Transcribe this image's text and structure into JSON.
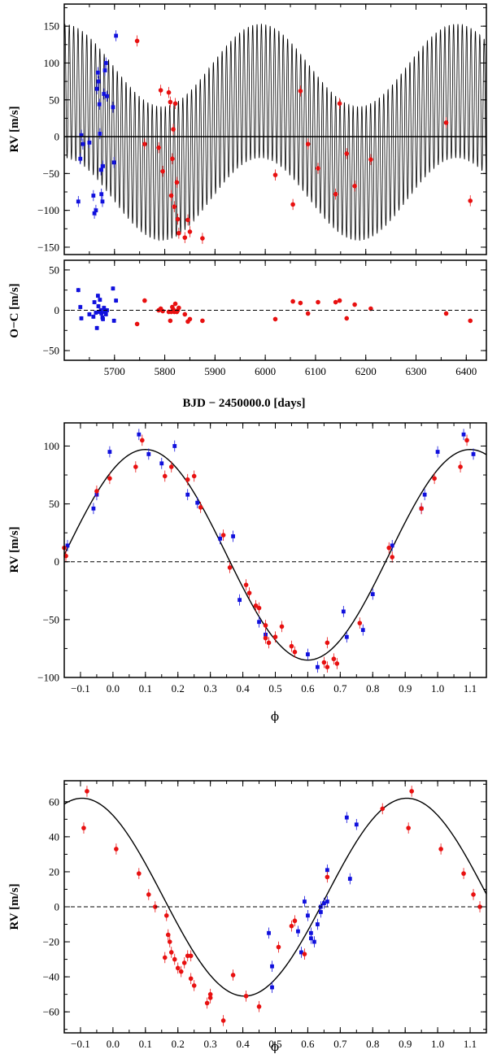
{
  "chart_data": [
    {
      "type": "scatter",
      "ylabel": "RV [m/s]",
      "xlim": [
        5600,
        6440
      ],
      "ylim": [
        -160,
        180
      ],
      "xticks": [
        5700,
        5800,
        5900,
        6000,
        6100,
        6200,
        6300,
        6400
      ],
      "yticks": [
        -150,
        -100,
        -50,
        0,
        50,
        100,
        150
      ],
      "grid": false,
      "series": [
        {
          "color": "#1010dd",
          "marker": "square",
          "points": [
            [
              5628,
              -88
            ],
            [
              5632,
              -30
            ],
            [
              5634,
              2
            ],
            [
              5637,
              -10
            ],
            [
              5650,
              -8
            ],
            [
              5658,
              -80
            ],
            [
              5660,
              -104
            ],
            [
              5663,
              -100
            ],
            [
              5665,
              65
            ],
            [
              5667,
              87
            ],
            [
              5668,
              75
            ],
            [
              5670,
              44
            ],
            [
              5671,
              4
            ],
            [
              5673,
              -45
            ],
            [
              5674,
              -78
            ],
            [
              5676,
              -88
            ],
            [
              5677,
              -40
            ],
            [
              5679,
              58
            ],
            [
              5681,
              90
            ],
            [
              5683,
              100
            ],
            [
              5685,
              55
            ],
            [
              5697,
              40
            ],
            [
              5699,
              -35
            ],
            [
              5703,
              137
            ]
          ]
        },
        {
          "color": "#e81010",
          "marker": "circle",
          "points": [
            [
              5745,
              130
            ],
            [
              5760,
              -10
            ],
            [
              5788,
              -15
            ],
            [
              5792,
              63
            ],
            [
              5796,
              -47
            ],
            [
              5808,
              60
            ],
            [
              5811,
              47
            ],
            [
              5813,
              -80
            ],
            [
              5815,
              -30
            ],
            [
              5817,
              10
            ],
            [
              5819,
              -95
            ],
            [
              5821,
              45
            ],
            [
              5824,
              -62
            ],
            [
              5826,
              -112
            ],
            [
              5828,
              -131
            ],
            [
              5840,
              -137
            ],
            [
              5846,
              -113
            ],
            [
              5850,
              -129
            ],
            [
              5875,
              -138
            ],
            [
              6020,
              -52
            ],
            [
              6055,
              -92
            ],
            [
              6070,
              62
            ],
            [
              6085,
              -10
            ],
            [
              6105,
              -43
            ],
            [
              6140,
              -78
            ],
            [
              6148,
              45
            ],
            [
              6162,
              -23
            ],
            [
              6178,
              -67
            ],
            [
              6210,
              -31
            ],
            [
              6360,
              19
            ],
            [
              6408,
              -87
            ]
          ]
        }
      ]
    },
    {
      "type": "scatter",
      "ylabel": "O−C [m/s]",
      "xlabel": "BJD − 2450000.0 [days]",
      "xlim": [
        5600,
        6440
      ],
      "ylim": [
        -62,
        62
      ],
      "xticks": [
        5700,
        5800,
        5900,
        6000,
        6100,
        6200,
        6300,
        6400
      ],
      "yticks": [
        -50,
        0,
        50
      ],
      "grid": false,
      "series": [
        {
          "color": "#1010dd",
          "marker": "square",
          "points": [
            [
              5628,
              25
            ],
            [
              5632,
              4
            ],
            [
              5634,
              -10
            ],
            [
              5650,
              -5
            ],
            [
              5658,
              -8
            ],
            [
              5660,
              10
            ],
            [
              5663,
              -3
            ],
            [
              5665,
              -22
            ],
            [
              5667,
              18
            ],
            [
              5668,
              5
            ],
            [
              5670,
              -2
            ],
            [
              5671,
              13
            ],
            [
              5673,
              0
            ],
            [
              5674,
              -4
            ],
            [
              5676,
              -9
            ],
            [
              5677,
              -11
            ],
            [
              5679,
              3
            ],
            [
              5681,
              -2
            ],
            [
              5683,
              -5
            ],
            [
              5685,
              0
            ],
            [
              5697,
              27
            ],
            [
              5699,
              -13
            ],
            [
              5703,
              12
            ]
          ]
        },
        {
          "color": "#e81010",
          "marker": "circle",
          "points": [
            [
              5745,
              -17
            ],
            [
              5760,
              12
            ],
            [
              5788,
              0
            ],
            [
              5792,
              2
            ],
            [
              5796,
              -1
            ],
            [
              5808,
              -2
            ],
            [
              5811,
              -13
            ],
            [
              5813,
              -2
            ],
            [
              5815,
              4
            ],
            [
              5817,
              1
            ],
            [
              5819,
              -2
            ],
            [
              5821,
              8
            ],
            [
              5824,
              -2
            ],
            [
              5826,
              0
            ],
            [
              5828,
              3
            ],
            [
              5840,
              -5
            ],
            [
              5846,
              -14
            ],
            [
              5850,
              -11
            ],
            [
              5875,
              -13
            ],
            [
              6020,
              -11
            ],
            [
              6055,
              11
            ],
            [
              6070,
              9
            ],
            [
              6085,
              -4
            ],
            [
              6105,
              10
            ],
            [
              6140,
              10
            ],
            [
              6148,
              12
            ],
            [
              6162,
              -10
            ],
            [
              6178,
              7
            ],
            [
              6210,
              2
            ],
            [
              6360,
              -4
            ],
            [
              6408,
              -13
            ]
          ]
        }
      ]
    },
    {
      "type": "scatter",
      "ylabel": "RV [m/s]",
      "xlabel": "ϕ",
      "xlim": [
        -0.15,
        1.15
      ],
      "ylim": [
        -100,
        120
      ],
      "xticks": [
        -0.1,
        0.0,
        0.1,
        0.2,
        0.3,
        0.4,
        0.5,
        0.6,
        0.7,
        0.8,
        0.9,
        1.0,
        1.1
      ],
      "yticks": [
        -100,
        -50,
        0,
        50,
        100
      ],
      "xtick_labels": [
        "−0.1",
        "0.0",
        "0.1",
        "0.2",
        "0.3",
        "0.4",
        "0.5",
        "0.6",
        "0.7",
        "0.8",
        "0.9",
        "1.0",
        "1.1"
      ],
      "yrange_model": {
        "amplitude": 91,
        "offset": 6,
        "peak_phase": 0.1
      },
      "series": [
        {
          "color": "#1010dd",
          "marker": "square",
          "points": [
            [
              -0.14,
              14
            ],
            [
              -0.06,
              46
            ],
            [
              -0.05,
              58
            ],
            [
              -0.01,
              95
            ],
            [
              0.08,
              110
            ],
            [
              0.11,
              93
            ],
            [
              0.15,
              85
            ],
            [
              0.19,
              100
            ],
            [
              0.23,
              58
            ],
            [
              0.26,
              51
            ],
            [
              0.33,
              20
            ],
            [
              0.37,
              22
            ],
            [
              0.39,
              -33
            ],
            [
              0.45,
              -52
            ],
            [
              0.47,
              -63
            ],
            [
              0.6,
              -80
            ],
            [
              0.63,
              -91
            ],
            [
              0.71,
              -43
            ],
            [
              0.72,
              -65
            ],
            [
              0.77,
              -59
            ],
            [
              0.8,
              -28
            ],
            [
              0.86,
              14
            ],
            [
              0.95,
              46
            ],
            [
              0.96,
              58
            ],
            [
              1.0,
              95
            ],
            [
              1.08,
              110
            ],
            [
              1.11,
              93
            ]
          ]
        },
        {
          "color": "#e81010",
          "marker": "circle",
          "points": [
            [
              -0.15,
              12
            ],
            [
              -0.145,
              5
            ],
            [
              -0.05,
              61
            ],
            [
              -0.01,
              72
            ],
            [
              0.07,
              82
            ],
            [
              0.09,
              105
            ],
            [
              0.16,
              74
            ],
            [
              0.18,
              82
            ],
            [
              0.23,
              71
            ],
            [
              0.25,
              74
            ],
            [
              0.27,
              47
            ],
            [
              0.34,
              23
            ],
            [
              0.36,
              -5
            ],
            [
              0.41,
              -20
            ],
            [
              0.42,
              -27
            ],
            [
              0.44,
              -38
            ],
            [
              0.45,
              -40
            ],
            [
              0.47,
              -55
            ],
            [
              0.47,
              -66
            ],
            [
              0.48,
              -70
            ],
            [
              0.5,
              -65
            ],
            [
              0.52,
              -56
            ],
            [
              0.55,
              -73
            ],
            [
              0.56,
              -78
            ],
            [
              0.65,
              -87
            ],
            [
              0.66,
              -91
            ],
            [
              0.66,
              -70
            ],
            [
              0.68,
              -84
            ],
            [
              0.69,
              -88
            ],
            [
              0.76,
              -53
            ],
            [
              0.85,
              12
            ],
            [
              0.86,
              4
            ],
            [
              0.95,
              46
            ],
            [
              0.99,
              72
            ],
            [
              1.07,
              82
            ],
            [
              1.09,
              105
            ]
          ]
        }
      ]
    },
    {
      "type": "scatter",
      "ylabel": "RV [m/s]",
      "xlabel": "ϕ",
      "xlim": [
        -0.15,
        1.15
      ],
      "ylim": [
        -72,
        72
      ],
      "xticks": [
        -0.1,
        0.0,
        0.1,
        0.2,
        0.3,
        0.4,
        0.5,
        0.6,
        0.7,
        0.8,
        0.9,
        1.0,
        1.1
      ],
      "yticks": [
        -60,
        -40,
        -20,
        0,
        20,
        40,
        60
      ],
      "xtick_labels": [
        "−0.1",
        "0.0",
        "0.1",
        "0.2",
        "0.3",
        "0.4",
        "0.5",
        "0.6",
        "0.7",
        "0.8",
        "0.9",
        "1.0",
        "1.1"
      ],
      "yrange_model": {
        "amplitude": 56.5,
        "offset": 5.5,
        "peak_phase": 0.905
      },
      "series": [
        {
          "color": "#1010dd",
          "marker": "square",
          "points": [
            [
              0.48,
              -15
            ],
            [
              0.49,
              -34
            ],
            [
              0.49,
              -46
            ],
            [
              0.57,
              -14
            ],
            [
              0.58,
              -26
            ],
            [
              0.59,
              3
            ],
            [
              0.6,
              -5
            ],
            [
              0.61,
              -15
            ],
            [
              0.61,
              -18
            ],
            [
              0.62,
              -20
            ],
            [
              0.63,
              -10
            ],
            [
              0.64,
              -3
            ],
            [
              0.64,
              0
            ],
            [
              0.65,
              2
            ],
            [
              0.66,
              21
            ],
            [
              0.66,
              3
            ],
            [
              0.72,
              51
            ],
            [
              0.73,
              16
            ],
            [
              0.75,
              47
            ]
          ]
        },
        {
          "color": "#e81010",
          "marker": "circle",
          "points": [
            [
              -0.09,
              45
            ],
            [
              -0.08,
              66
            ],
            [
              0.01,
              33
            ],
            [
              0.08,
              19
            ],
            [
              0.11,
              7
            ],
            [
              0.13,
              0
            ],
            [
              0.16,
              -29
            ],
            [
              0.165,
              -5
            ],
            [
              0.17,
              -16
            ],
            [
              0.175,
              -20
            ],
            [
              0.18,
              -26
            ],
            [
              0.19,
              -30
            ],
            [
              0.2,
              -35
            ],
            [
              0.21,
              -37
            ],
            [
              0.22,
              -32
            ],
            [
              0.23,
              -28
            ],
            [
              0.24,
              -41
            ],
            [
              0.24,
              -28
            ],
            [
              0.25,
              -45
            ],
            [
              0.29,
              -55
            ],
            [
              0.3,
              -52
            ],
            [
              0.3,
              -50
            ],
            [
              0.34,
              -65
            ],
            [
              0.37,
              -39
            ],
            [
              0.41,
              -51
            ],
            [
              0.45,
              -57
            ],
            [
              0.51,
              -23
            ],
            [
              0.55,
              -11
            ],
            [
              0.56,
              -8
            ],
            [
              0.59,
              -27
            ],
            [
              0.66,
              17
            ],
            [
              0.83,
              56
            ],
            [
              0.91,
              45
            ],
            [
              0.92,
              66
            ],
            [
              1.01,
              33
            ],
            [
              1.08,
              19
            ],
            [
              1.11,
              7
            ],
            [
              1.13,
              0
            ]
          ]
        }
      ]
    }
  ]
}
